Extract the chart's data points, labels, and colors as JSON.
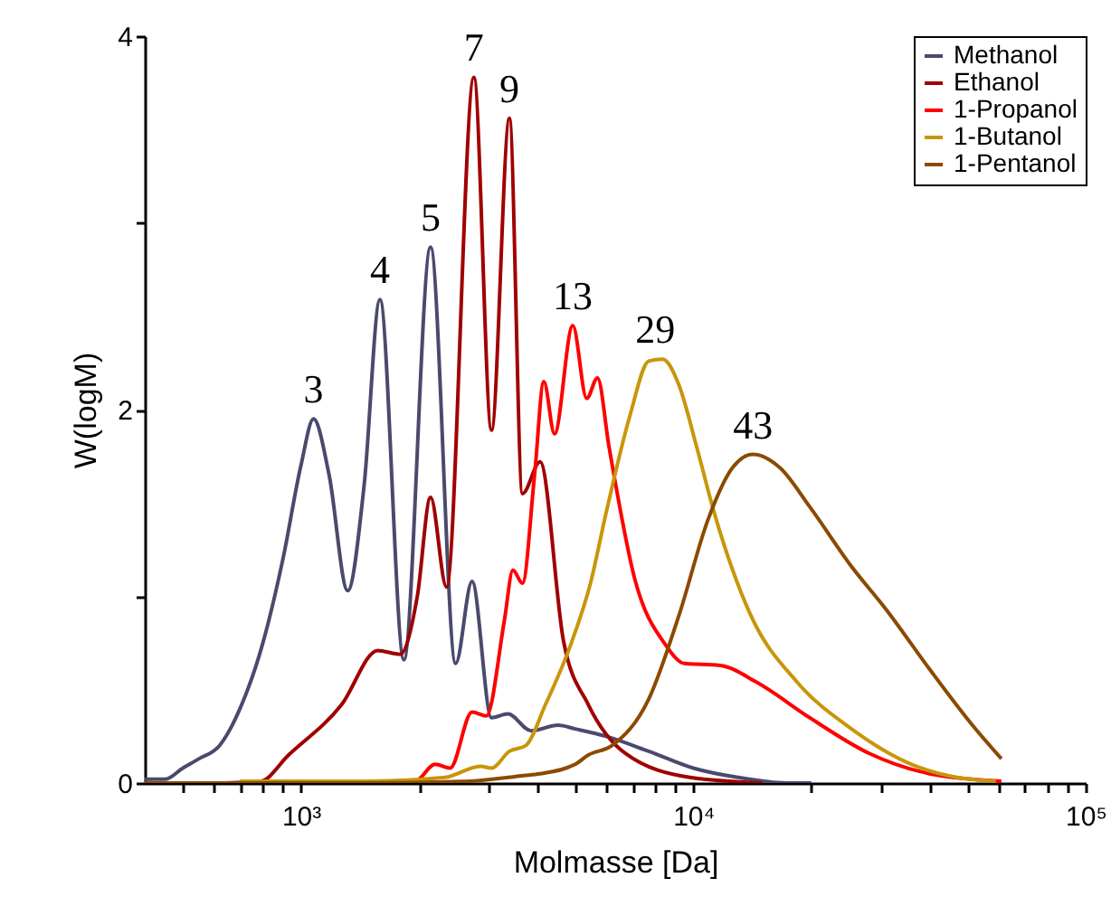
{
  "chart_data": {
    "type": "line",
    "xlabel": "Molmasse [Da]",
    "ylabel": "W(logM)",
    "log": "x",
    "xlim": [
      400,
      100000
    ],
    "ylim": [
      0,
      4
    ],
    "xticks": [
      {
        "value": 500,
        "label": null
      },
      {
        "value": 600,
        "label": null
      },
      {
        "value": 700,
        "label": null
      },
      {
        "value": 800,
        "label": null
      },
      {
        "value": 900,
        "label": null
      },
      {
        "value": 1000,
        "label": "10³"
      },
      {
        "value": 2000,
        "label": null
      },
      {
        "value": 3000,
        "label": null
      },
      {
        "value": 4000,
        "label": null
      },
      {
        "value": 5000,
        "label": null
      },
      {
        "value": 6000,
        "label": null
      },
      {
        "value": 7000,
        "label": null
      },
      {
        "value": 8000,
        "label": null
      },
      {
        "value": 9000,
        "label": null
      },
      {
        "value": 10000,
        "label": "10⁴"
      },
      {
        "value": 20000,
        "label": null
      },
      {
        "value": 30000,
        "label": null
      },
      {
        "value": 40000,
        "label": null
      },
      {
        "value": 50000,
        "label": null
      },
      {
        "value": 60000,
        "label": null
      },
      {
        "value": 70000,
        "label": null
      },
      {
        "value": 80000,
        "label": null
      },
      {
        "value": 90000,
        "label": null
      },
      {
        "value": 100000,
        "label": "10⁵"
      }
    ],
    "yticks": [
      0,
      {
        "value": 1,
        "label": null
      },
      2,
      {
        "value": 3,
        "label": null
      },
      4
    ],
    "grid": false,
    "legend": "top right",
    "marker": "none",
    "line_style": "solid",
    "series": [
      {
        "name": "Methanol",
        "color": "#4a4a6e",
        "x": [
          400,
          450,
          500,
          550,
          620,
          700,
          800,
          900,
          1000,
          1077,
          1180,
          1316,
          1450,
          1590,
          1830,
          2140,
          2480,
          2730,
          3060,
          3370,
          3860,
          4520,
          5000,
          6000,
          7700,
          10000,
          13000,
          17300,
          20000
        ],
        "values": [
          0.02,
          0.02,
          0.08,
          0.13,
          0.2,
          0.4,
          0.75,
          1.2,
          1.7,
          1.95,
          1.65,
          1.03,
          1.6,
          2.59,
          0.66,
          2.87,
          0.64,
          1.08,
          0.35,
          0.37,
          0.28,
          0.31,
          0.29,
          0.25,
          0.17,
          0.08,
          0.03,
          0.0,
          0.0
        ]
      },
      {
        "name": "Ethanol",
        "color": "#a00000",
        "x": [
          400,
          600,
          790,
          930,
          1270,
          1570,
          1790,
          1980,
          2140,
          2350,
          2760,
          3060,
          3400,
          3670,
          4070,
          4670,
          5400,
          6700,
          9800,
          15000
        ],
        "values": [
          0.0,
          0.0,
          0.01,
          0.15,
          0.42,
          0.71,
          0.69,
          1.0,
          1.53,
          1.05,
          3.78,
          1.89,
          3.56,
          1.55,
          1.72,
          0.76,
          0.42,
          0.16,
          0.03,
          0.0
        ]
      },
      {
        "name": "1-Propanol",
        "color": "#ff0000",
        "x": [
          700,
          1500,
          1950,
          2200,
          2400,
          2730,
          2970,
          3300,
          3470,
          3670,
          3940,
          4160,
          4430,
          4930,
          5350,
          5700,
          6100,
          7100,
          8500,
          9500,
          11700,
          14500,
          19800,
          28000,
          40000,
          61000
        ],
        "values": [
          0.0,
          0.01,
          0.01,
          0.1,
          0.08,
          0.38,
          0.36,
          0.87,
          1.14,
          1.07,
          1.65,
          2.15,
          1.87,
          2.45,
          2.06,
          2.17,
          1.8,
          1.09,
          0.74,
          0.64,
          0.63,
          0.54,
          0.35,
          0.16,
          0.05,
          0.01
        ]
      },
      {
        "name": "1-Butanol",
        "color": "#c8960a",
        "x": [
          700,
          1500,
          2330,
          2870,
          3060,
          3400,
          3740,
          4200,
          4870,
          5470,
          6000,
          6900,
          7700,
          8350,
          9200,
          10200,
          11300,
          14000,
          18400,
          25300,
          36000,
          47000,
          59000
        ],
        "values": [
          0.01,
          0.01,
          0.03,
          0.09,
          0.08,
          0.17,
          0.2,
          0.42,
          0.74,
          1.07,
          1.45,
          1.97,
          2.26,
          2.27,
          2.13,
          1.8,
          1.45,
          0.9,
          0.54,
          0.29,
          0.1,
          0.03,
          0.01
        ]
      },
      {
        "name": "1-Pentanol",
        "color": "#8b4a00",
        "x": [
          400,
          1500,
          2700,
          3700,
          4070,
          5000,
          5400,
          6200,
          7700,
          9200,
          10900,
          12600,
          14200,
          16600,
          19800,
          25300,
          31000,
          40000,
          51000,
          61000
        ],
        "values": [
          0.0,
          0.0,
          0.01,
          0.04,
          0.05,
          0.1,
          0.15,
          0.2,
          0.45,
          0.9,
          1.41,
          1.69,
          1.76,
          1.69,
          1.48,
          1.16,
          0.93,
          0.61,
          0.32,
          0.13
        ]
      }
    ],
    "annotations": [
      {
        "text": "3",
        "x": 1077,
        "y": 1.95
      },
      {
        "text": "4",
        "x": 1590,
        "y": 2.59
      },
      {
        "text": "5",
        "x": 2140,
        "y": 2.87
      },
      {
        "text": "7",
        "x": 2760,
        "y": 3.78
      },
      {
        "text": "9",
        "x": 3400,
        "y": 3.56
      },
      {
        "text": "13",
        "x": 4930,
        "y": 2.45
      },
      {
        "text": "29",
        "x": 8000,
        "y": 2.27
      },
      {
        "text": "43",
        "x": 14200,
        "y": 1.76
      }
    ]
  }
}
